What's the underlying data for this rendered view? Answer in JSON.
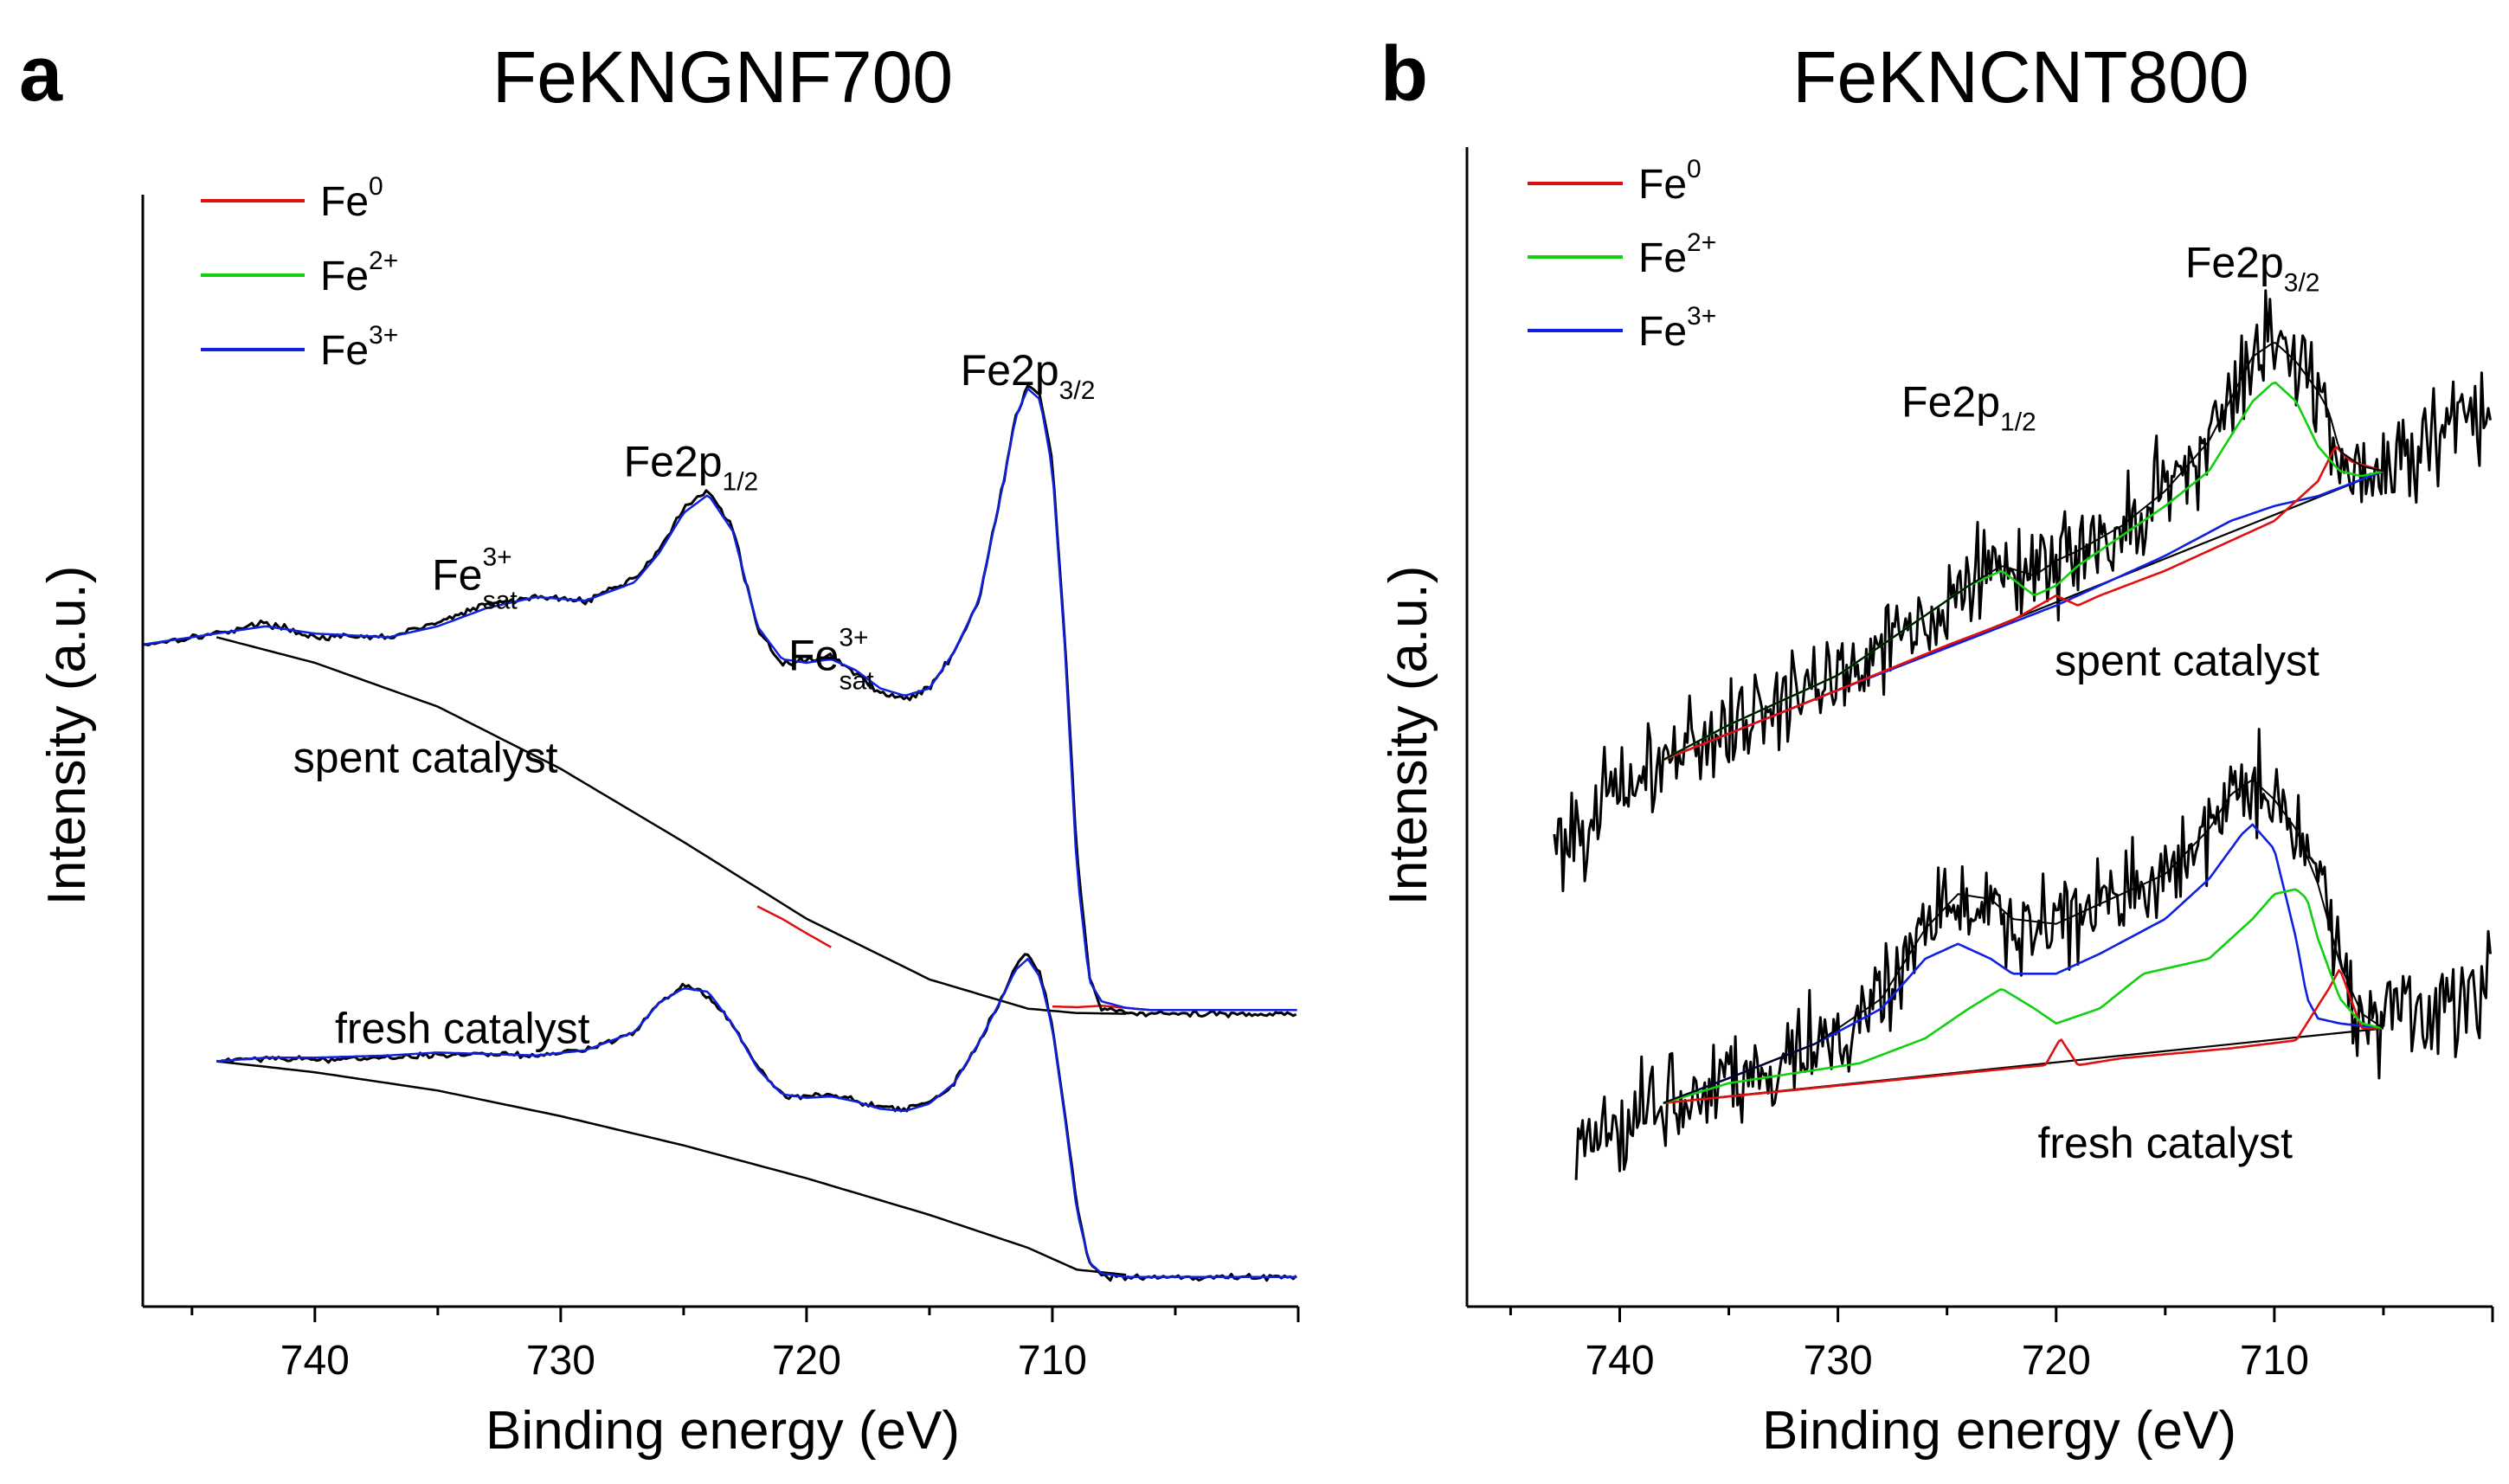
{
  "chart_data": [
    {
      "type": "line",
      "panel": "a",
      "title": "FeKNGNF700",
      "xlabel": "Binding energy (eV)",
      "ylabel": "Intensity (a.u.)",
      "xlim": [
        747,
        700
      ],
      "ylim": [
        0,
        100
      ],
      "xticks": [
        740,
        730,
        720,
        710
      ],
      "legend": [
        {
          "base": "Fe",
          "sup": "0",
          "color": "#e01010"
        },
        {
          "base": "Fe",
          "sup": "2+",
          "color": "#10d010"
        },
        {
          "base": "Fe",
          "sup": "3+",
          "color": "#1020e0"
        }
      ],
      "annotations": [
        {
          "base": "Fe",
          "sup": "3+",
          "sub": "sat",
          "x": 733.5,
          "y": 64.5
        },
        {
          "base": "Fe2p",
          "sub": "1/2",
          "x": 724.7,
          "y": 80.0
        },
        {
          "base": "Fe",
          "sup": "3+",
          "sub": "sat",
          "x": 719,
          "y": 53.5
        },
        {
          "base": "Fe2p",
          "sub": "3/2",
          "x": 711,
          "y": 92.5
        },
        {
          "base": "spent catalyst",
          "x": 735.5,
          "y": 39.5
        },
        {
          "base": "fresh catalyst",
          "x": 734,
          "y": 2.5
        }
      ],
      "series": [
        {
          "name": "spent catalyst",
          "x": [
            747,
            744,
            742,
            740,
            737,
            735,
            733,
            731,
            729,
            727,
            726,
            725,
            724,
            723,
            722,
            721,
            720,
            719,
            718,
            717,
            716,
            715,
            714,
            713,
            712.5,
            712,
            711.5,
            711,
            710.5,
            710,
            709.5,
            709,
            708.5,
            708,
            707,
            706,
            704,
            702,
            700
          ],
          "experimental": [
            57.0,
            58.5,
            60.0,
            58.0,
            58.0,
            60.0,
            62.5,
            63.5,
            63.0,
            66.0,
            70.0,
            75.5,
            78.0,
            73.0,
            59.0,
            54.5,
            54.8,
            55.5,
            53.0,
            50.5,
            49.5,
            51.0,
            56.0,
            63.0,
            71.0,
            79.0,
            88.0,
            92.5,
            91.0,
            82.0,
            58.0,
            28.0,
            11.5,
            7.2,
            6.7,
            6.5,
            6.4,
            6.5,
            6.5
          ],
          "envelope": [
            57.0,
            58.5,
            59.5,
            58.5,
            58.0,
            59.5,
            62.0,
            63.5,
            63.0,
            65.5,
            69.5,
            75.0,
            77.5,
            72.5,
            59.5,
            55.0,
            54.5,
            55.0,
            53.5,
            51.0,
            50.0,
            51.0,
            56.0,
            63.0,
            71.0,
            79.0,
            88.0,
            92.0,
            90.5,
            81.0,
            57.0,
            26.0,
            11.0,
            8.2,
            7.3,
            7.0,
            7.0,
            7.0,
            7.0
          ],
          "fe0": {
            "x": [
              722,
              721,
              720,
              719
            ],
            "y": [
              21.2,
              19.5,
              17.5,
              15.6
            ]
          },
          "fe0_b": {
            "x": [
              710,
              709,
              708,
              707,
              706
            ],
            "y": [
              7.5,
              7.4,
              7.6,
              7.3,
              7.0
            ]
          },
          "background": {
            "x": [
              744,
              740,
              735,
              730,
              725,
              720,
              715,
              711,
              709,
              707
            ],
            "y": [
              58.0,
              54.5,
              48.5,
              40.0,
              30.0,
              19.5,
              11.2,
              7.2,
              6.6,
              6.5
            ]
          }
        },
        {
          "name": "fresh catalyst",
          "x": [
            744,
            742,
            740,
            737,
            735,
            733,
            731,
            729,
            727,
            726,
            725,
            724,
            723,
            722,
            721,
            720,
            719,
            718,
            717,
            716,
            715,
            714,
            713,
            712,
            711.5,
            711,
            710.5,
            710,
            709.5,
            709,
            708.5,
            708,
            707,
            706,
            704,
            702,
            700
          ],
          "experimental": [
            0.0,
            0.5,
            0.3,
            0.5,
            0.8,
            1.0,
            0.8,
            1.5,
            4.0,
            8.0,
            10.5,
            9.0,
            5.0,
            -1.0,
            -4.5,
            -4.8,
            -4.5,
            -5.2,
            -6.2,
            -6.5,
            -5.5,
            -3.0,
            2.5,
            9.0,
            13.0,
            14.5,
            12.0,
            5.0,
            -7.0,
            -20.0,
            -27.5,
            -29.5,
            -29.5,
            -29.5,
            -29.5,
            -29.5,
            -29.5
          ],
          "envelope": [
            0.0,
            0.5,
            0.5,
            0.8,
            1.2,
            1.0,
            0.8,
            1.5,
            4.0,
            8.0,
            10.0,
            9.5,
            5.0,
            -1.0,
            -4.5,
            -5.0,
            -4.8,
            -5.5,
            -6.5,
            -6.8,
            -5.8,
            -3.0,
            2.5,
            9.0,
            12.5,
            14.0,
            11.5,
            4.5,
            -7.5,
            -20.5,
            -27.5,
            -29.0,
            -29.5,
            -29.5,
            -29.5,
            -29.5,
            -29.5
          ],
          "background": {
            "x": [
              744,
              740,
              735,
              730,
              725,
              720,
              715,
              711,
              709,
              707
            ],
            "y": [
              0.0,
              -1.5,
              -4.0,
              -7.5,
              -11.5,
              -16.0,
              -21.0,
              -25.5,
              -28.5,
              -29.2
            ]
          }
        }
      ]
    },
    {
      "type": "line",
      "panel": "b",
      "title": "FeKNCNT800",
      "xlabel": "Binding energy (eV)",
      "ylabel": "Intensity (a.u.)",
      "xlim": [
        747,
        700
      ],
      "ylim": [
        0,
        100
      ],
      "xticks": [
        740,
        730,
        720,
        710
      ],
      "legend": [
        {
          "base": "Fe",
          "sup": "0",
          "color": "#e01010"
        },
        {
          "base": "Fe",
          "sup": "2+",
          "color": "#10d010"
        },
        {
          "base": "Fe",
          "sup": "3+",
          "color": "#1020e0"
        }
      ],
      "annotations": [
        {
          "base": "Fe2p",
          "sub": "3/2",
          "x": 711,
          "y": 96.5
        },
        {
          "base": "Fe2p",
          "sub": "1/2",
          "x": 724,
          "y": 82.5
        },
        {
          "base": "spent catalyst",
          "x": 714,
          "y": 56.5
        },
        {
          "base": "fresh catalyst",
          "x": 715,
          "y": 8.0
        }
      ],
      "series": [
        {
          "name": "spent catalyst",
          "x_range": [
            743,
            700
          ],
          "background": {
            "x": [
              738,
              705
            ],
            "y": [
              48.0,
              77.0
            ]
          },
          "fe0": {
            "x": [
              738,
              730,
              725,
              722,
              720,
              719,
              718,
              715,
              710,
              708,
              707.2,
              706.5,
              705
            ],
            "y": [
              48.0,
              55.0,
              59.5,
              62.0,
              64.5,
              63.5,
              64.5,
              67.0,
              72.0,
              76.0,
              79.5,
              78.0,
              77.0
            ]
          },
          "fe2": {
            "x": [
              738,
              735,
              730,
              727,
              724,
              722.5,
              721,
              720,
              719,
              717,
              715,
              713,
              711,
              710,
              709,
              708,
              707,
              706,
              705
            ],
            "y": [
              48.0,
              51.5,
              56.5,
              61.0,
              65.5,
              67.0,
              64.5,
              65.5,
              67.5,
              70.5,
              73.5,
              77.0,
              84.0,
              86.0,
              84.0,
              79.5,
              77.0,
              76.5,
              77.0
            ]
          },
          "fe3": {
            "x": [
              738,
              730,
              720,
              715,
              712,
              710,
              708,
              705
            ],
            "y": [
              48.0,
              55.0,
              63.5,
              68.5,
              72.0,
              73.5,
              74.5,
              77.0
            ]
          },
          "envelope": {
            "x": [
              738,
              735,
              730,
              727,
              724,
              722.5,
              721,
              720,
              719,
              717,
              715,
              713,
              711,
              710,
              709,
              708,
              707.5,
              707,
              706,
              705
            ],
            "y": [
              48.0,
              51.5,
              56.5,
              61.0,
              65.5,
              67.5,
              66.5,
              68.0,
              69.0,
              71.5,
              75.0,
              80.0,
              88.5,
              90.0,
              88.0,
              85.0,
              83.0,
              79.0,
              77.5,
              77.0
            ]
          },
          "noise_amplitude": 4.0
        },
        {
          "name": "fresh catalyst",
          "x_range": [
            742,
            700
          ],
          "background": {
            "x": [
              738,
              705
            ],
            "y": [
              13.5,
              21.0
            ]
          },
          "fe0": {
            "x": [
              738,
              722,
              720.5,
              719.8,
              719,
              717,
              712,
              709,
              707.5,
              707,
              706.5,
              706,
              705
            ],
            "y": [
              13.5,
              17.0,
              17.3,
              20.0,
              17.3,
              18.0,
              19.0,
              19.8,
              25.0,
              27.0,
              24.0,
              21.0,
              21.0
            ]
          },
          "fe2": {
            "x": [
              738,
              735,
              732,
              729,
              726,
              724,
              722.5,
              721,
              720,
              718,
              716,
              715,
              713,
              711,
              710,
              709,
              708.5,
              708,
              707,
              706,
              705
            ],
            "y": [
              13.5,
              15.5,
              16.5,
              17.5,
              20.0,
              23.0,
              25.0,
              23.0,
              21.5,
              23.0,
              26.5,
              27.0,
              28.0,
              32.0,
              34.5,
              35.0,
              34.0,
              30.0,
              24.0,
              21.5,
              21.0
            ]
          },
          "fe3": {
            "x": [
              738,
              735,
              731,
              728,
              726,
              724.5,
              723,
              722,
              720,
              718,
              715,
              713,
              711.5,
              711,
              710,
              709,
              708.5,
              708,
              707,
              705
            ],
            "y": [
              13.5,
              16.0,
              19.5,
              23.0,
              28.0,
              29.5,
              28.0,
              26.5,
              26.5,
              28.5,
              32.0,
              36.0,
              40.5,
              41.5,
              39.0,
              30.0,
              24.0,
              22.0,
              21.5,
              21.0
            ]
          },
          "envelope": {
            "x": [
              738,
              735,
              731,
              728,
              726,
              724.5,
              723,
              722,
              720,
              718,
              715,
              713,
              712,
              711,
              710,
              709,
              708,
              707,
              706,
              705
            ],
            "y": [
              13.5,
              16.0,
              19.5,
              24.0,
              31.0,
              34.5,
              34.0,
              32.0,
              31.5,
              33.5,
              36.5,
              41.0,
              44.5,
              46.0,
              44.0,
              41.0,
              35.5,
              27.5,
              22.5,
              21.0
            ]
          },
          "noise_amplitude": 4.0
        }
      ]
    }
  ]
}
